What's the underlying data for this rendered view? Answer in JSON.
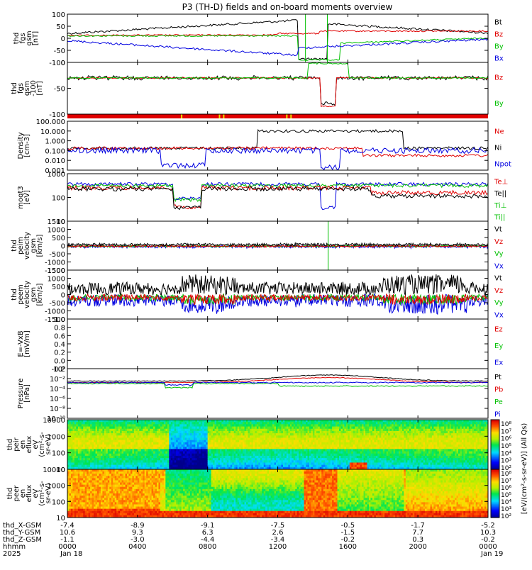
{
  "chart_data": {
    "type": "line",
    "title": "P3 (TH-D) fields and on-board moments overview",
    "year": "2025",
    "x_ticks": [
      "0000",
      "0400",
      "0800",
      "1200",
      "1600",
      "2000",
      "0000"
    ],
    "dates": [
      "Jan 18",
      "Jan 19"
    ],
    "ephemeris_rows": [
      {
        "label": "thd_X-GSM",
        "values": [
          "-7.4",
          "-8.9",
          "-9.1",
          "-7.5",
          "-0.5",
          "-1.7",
          "-5.2"
        ]
      },
      {
        "label": "thd_Y-GSM",
        "values": [
          "10.6",
          "9.3",
          "6.3",
          "2.6",
          "-1.5",
          "7.7",
          "10.3"
        ]
      },
      {
        "label": "thd_Z-GSM",
        "values": [
          "-1.1",
          "-3.0",
          "-4.4",
          "-3.4",
          "-0.2",
          "0.3",
          "-0.2"
        ]
      },
      {
        "label": "hhmm",
        "values": [
          "0000",
          "0400",
          "0800",
          "1200",
          "1600",
          "2000",
          "0000"
        ]
      }
    ],
    "panels": [
      {
        "ylabel": [
          "thd",
          "fgs",
          "gsm",
          "[nT]"
        ],
        "ylim": [
          -100,
          100
        ],
        "yticks": [
          "100",
          "50",
          "0",
          "-50",
          "-100"
        ],
        "legend": [
          {
            "name": "Bt",
            "color": "#000000"
          },
          {
            "name": "Bz",
            "color": "#e00000"
          },
          {
            "name": "By",
            "color": "#00c000"
          },
          {
            "name": "Bx",
            "color": "#0000e0"
          }
        ]
      },
      {
        "ylabel": [
          "thd",
          "fgs",
          "gsm",
          "-100",
          "[nT]"
        ],
        "ylim": [
          -120,
          20
        ],
        "yticks": [
          "0",
          "-50",
          "-100"
        ],
        "legend": [
          {
            "name": "Bz",
            "color": "#e00000"
          },
          {
            "name": "By",
            "color": "#00c000"
          }
        ]
      },
      {
        "ylabel": [
          "Density",
          "[cm-3]"
        ],
        "ylim": [
          0.001,
          100
        ],
        "scale": "log",
        "yticks": [
          "100.000",
          "10.000",
          "1.000",
          "0.100",
          "0.010",
          "0.001"
        ],
        "legend": [
          {
            "name": "Ne",
            "color": "#e00000"
          },
          {
            "name": "Ni",
            "color": "#000000"
          },
          {
            "name": "Npot",
            "color": "#0000e0"
          }
        ]
      },
      {
        "ylabel": [
          "moqt3",
          "[eV]"
        ],
        "ylim": [
          10,
          3000
        ],
        "scale": "log",
        "yticks": [
          "1000",
          "100",
          "10"
        ],
        "legend": [
          {
            "name": "Te⊥",
            "color": "#e00000"
          },
          {
            "name": "Te||",
            "color": "#000000"
          },
          {
            "name": "Ti⊥",
            "color": "#00c000"
          },
          {
            "name": "Ti||",
            "color": "#00c000"
          }
        ]
      },
      {
        "ylabel": [
          "thd",
          "peim",
          "velocity",
          "gsm",
          "[km/s]"
        ],
        "ylim": [
          -1500,
          1500
        ],
        "yticks": [
          "1500",
          "1000",
          "500",
          "0",
          "-500",
          "-1000",
          "-1500"
        ],
        "legend": [
          {
            "name": "Vt",
            "color": "#000000"
          },
          {
            "name": "Vz",
            "color": "#e00000"
          },
          {
            "name": "Vy",
            "color": "#00c000"
          },
          {
            "name": "Vx",
            "color": "#0000e0"
          }
        ]
      },
      {
        "ylabel": [
          "thd",
          "peem",
          "velocity",
          "gsm",
          "[km/s]"
        ],
        "ylim": [
          -1500,
          1500
        ],
        "yticks": [
          "1500",
          "1000",
          "500",
          "0",
          "-500",
          "-1000",
          "-1500"
        ],
        "legend": [
          {
            "name": "Vt",
            "color": "#000000"
          },
          {
            "name": "Vz",
            "color": "#e00000"
          },
          {
            "name": "Vy",
            "color": "#00c000"
          },
          {
            "name": "Vx",
            "color": "#0000e0"
          }
        ]
      },
      {
        "ylabel": [
          "E=-VxB",
          "[mV/m]"
        ],
        "ylim": [
          -0.2,
          1.0
        ],
        "yticks": [
          "1.0",
          "0.8",
          "0.6",
          "0.4",
          "0.2",
          "0.0",
          "-0.2"
        ],
        "legend": [
          {
            "name": "Ez",
            "color": "#e00000"
          },
          {
            "name": "Ey",
            "color": "#00c000"
          },
          {
            "name": "Ex",
            "color": "#0000e0"
          }
        ]
      },
      {
        "ylabel": [
          "Pressure",
          "[nPa]"
        ],
        "ylim": [
          1e-10,
          1
        ],
        "scale": "log",
        "yticks": [
          "10⁰",
          "10⁻²",
          "10⁻⁴",
          "10⁻⁶",
          "10⁻⁸",
          "10⁻¹⁰"
        ],
        "legend": [
          {
            "name": "Pt",
            "color": "#000000"
          },
          {
            "name": "Pb",
            "color": "#e00000"
          },
          {
            "name": "Pe",
            "color": "#00c000"
          },
          {
            "name": "Pi",
            "color": "#0000e0"
          }
        ]
      },
      {
        "ylabel": [
          "thd",
          "peir",
          "en",
          "eflux",
          "eV",
          "(cm²-s-",
          "sr-eV)"
        ],
        "ylim": [
          8,
          15000
        ],
        "scale": "log",
        "yticks": [
          "10000",
          "1000",
          "100",
          "10"
        ],
        "type": "heatmap"
      },
      {
        "ylabel": [
          "thd",
          "peer",
          "en",
          "eflux",
          "eV",
          "(cm²-s-",
          "sr-eV)"
        ],
        "ylim": [
          8,
          15000
        ],
        "scale": "log",
        "yticks": [
          "10000",
          "1000",
          "100",
          "10"
        ],
        "type": "heatmap"
      }
    ],
    "colorbar": {
      "label": "[eV/(cm²-s-sr-eV)] (All Qs)",
      "ticks_top": [
        "10⁸",
        "10⁷",
        "10⁶",
        "10⁵",
        "10⁴",
        "10³",
        "10²"
      ],
      "ticks_bottom": [
        "10⁸",
        "10⁷",
        "10⁶",
        "10⁵",
        "10⁴",
        "10³",
        "10²"
      ]
    },
    "grid": false
  }
}
